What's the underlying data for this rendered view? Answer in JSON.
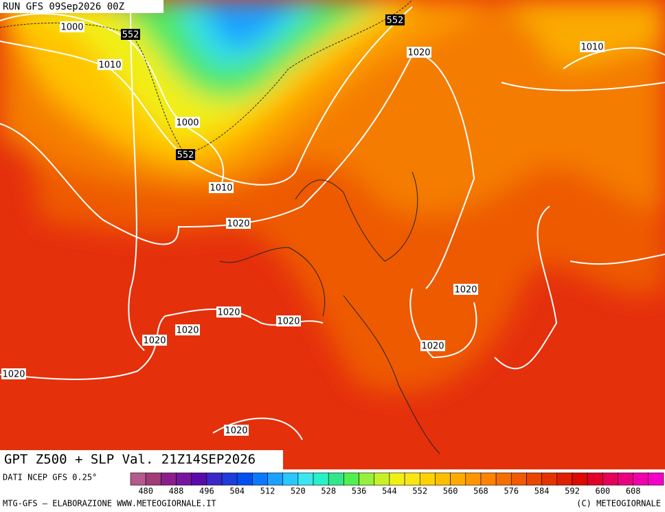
{
  "header": {
    "run": "RUN GFS 09Sep2026 00Z"
  },
  "map": {
    "z500_labels": [
      552,
      552,
      552
    ],
    "slp_labels": [
      1000,
      1010,
      1000,
      1010,
      1020,
      1020,
      1010,
      1020,
      1020,
      1020,
      1020,
      1020,
      1020,
      1020,
      1020
    ],
    "title": "GPT Z500 + SLP Val. 21Z14SEP2026"
  },
  "footer": {
    "source": "DATI NCEP GFS 0.25°",
    "credit": "MTG-GFS – ELABORAZIONE WWW.METEOGIORNALE.IT",
    "copyright": "(C) METEOGIORNALE"
  },
  "colorbar": {
    "ticks": [
      480,
      488,
      496,
      504,
      512,
      520,
      528,
      536,
      544,
      552,
      560,
      568,
      576,
      584,
      592,
      600,
      608
    ],
    "colors": [
      "#b45a8c",
      "#a03c78",
      "#8c1e8c",
      "#7814a0",
      "#5a0aaa",
      "#3c28c8",
      "#1e3cdc",
      "#0050f0",
      "#0a78ff",
      "#1ea0ff",
      "#28c8ff",
      "#3ce6f0",
      "#28f0c8",
      "#32e68c",
      "#50f050",
      "#96f03c",
      "#c8f028",
      "#f0f014",
      "#fae614",
      "#ffd200",
      "#ffbe00",
      "#ffaa00",
      "#ff9600",
      "#ff8200",
      "#f56e00",
      "#f05a00",
      "#eb4600",
      "#e63200",
      "#e11e00",
      "#dc0a00",
      "#e0002a",
      "#e6005a",
      "#eb0082",
      "#f000aa",
      "#f500c8"
    ]
  }
}
